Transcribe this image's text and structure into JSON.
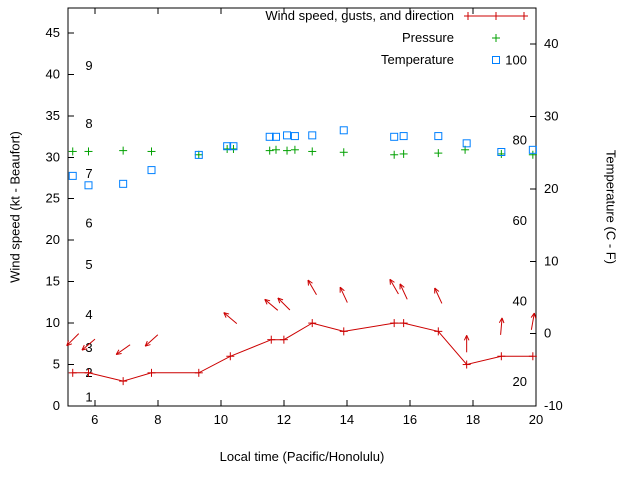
{
  "colors": {
    "wind": "#cc0000",
    "pressure": "#00a000",
    "temperature": "#0080ff",
    "axis": "#000000",
    "text": "#000000",
    "background": "#ffffff"
  },
  "legend": {
    "entries": [
      {
        "label": "Wind speed, gusts, and direction",
        "series": "wind"
      },
      {
        "label": "Pressure",
        "series": "pressure"
      },
      {
        "label": "Temperature",
        "series": "temperature"
      }
    ]
  },
  "chart_data": {
    "type": "line",
    "title": "",
    "xlabel": "Local time (Pacific/Honolulu)",
    "ylabel_left": "Wind speed (kt - Beaufort)",
    "ylabel_right": "Temperature (C - F)",
    "x_range": [
      5.15,
      20
    ],
    "y_left_range": [
      0,
      48
    ],
    "y_right_range": [
      -10,
      45
    ],
    "x_ticks": [
      6,
      8,
      10,
      12,
      14,
      16,
      18,
      20
    ],
    "y_left_ticks": [
      0,
      5,
      10,
      15,
      20,
      25,
      30,
      35,
      40,
      45
    ],
    "y_right_ticks": [
      -10,
      0,
      10,
      20,
      30,
      40
    ],
    "beaufort_scale_labels": [
      {
        "label": "1",
        "kt": 1
      },
      {
        "label": "2",
        "kt": 4
      },
      {
        "label": "3",
        "kt": 7
      },
      {
        "label": "4",
        "kt": 11
      },
      {
        "label": "5",
        "kt": 17
      },
      {
        "label": "6",
        "kt": 22
      },
      {
        "label": "7",
        "kt": 28
      },
      {
        "label": "8",
        "kt": 34
      },
      {
        "label": "9",
        "kt": 41
      }
    ],
    "fahrenheit_scale_labels": [
      {
        "label": "20",
        "f": 20
      },
      {
        "label": "40",
        "f": 40
      },
      {
        "label": "60",
        "f": 60
      },
      {
        "label": "80",
        "f": 80
      },
      {
        "label": "100",
        "f": 100
      }
    ],
    "series": [
      {
        "name": "Wind speed, gusts, and direction",
        "axis": "left",
        "marker": "plus",
        "line": true,
        "color_key": "wind",
        "points": [
          [
            5.3,
            4
          ],
          [
            5.8,
            4
          ],
          [
            6.9,
            3
          ],
          [
            7.8,
            4
          ],
          [
            9.3,
            4
          ],
          [
            10.3,
            6
          ],
          [
            11.6,
            8
          ],
          [
            12.0,
            8
          ],
          [
            12.9,
            10
          ],
          [
            13.9,
            9
          ],
          [
            15.5,
            10
          ],
          [
            15.8,
            10
          ],
          [
            16.9,
            9
          ],
          [
            17.8,
            5
          ],
          [
            18.9,
            6
          ],
          [
            19.9,
            6
          ]
        ]
      },
      {
        "name": "Pressure",
        "axis": "left",
        "marker": "plus",
        "line": false,
        "color_key": "pressure",
        "points": [
          [
            5.3,
            30.7
          ],
          [
            5.8,
            30.7
          ],
          [
            6.9,
            30.8
          ],
          [
            7.8,
            30.7
          ],
          [
            9.3,
            30.3
          ],
          [
            10.2,
            31.0
          ],
          [
            10.4,
            31.0
          ],
          [
            11.55,
            30.8
          ],
          [
            11.75,
            30.9
          ],
          [
            12.1,
            30.8
          ],
          [
            12.35,
            30.9
          ],
          [
            12.9,
            30.7
          ],
          [
            13.9,
            30.6
          ],
          [
            15.5,
            30.3
          ],
          [
            15.8,
            30.4
          ],
          [
            16.9,
            30.5
          ],
          [
            17.75,
            30.9
          ],
          [
            18.9,
            30.4
          ],
          [
            19.9,
            30.3
          ]
        ]
      },
      {
        "name": "Temperature",
        "axis": "right",
        "marker": "square",
        "line": false,
        "color_key": "temperature",
        "points": [
          [
            5.3,
            21.8
          ],
          [
            5.8,
            20.5
          ],
          [
            6.9,
            20.7
          ],
          [
            7.8,
            22.6
          ],
          [
            9.3,
            24.7
          ],
          [
            10.2,
            25.9
          ],
          [
            10.4,
            25.9
          ],
          [
            11.55,
            27.2
          ],
          [
            11.75,
            27.2
          ],
          [
            12.1,
            27.4
          ],
          [
            12.35,
            27.3
          ],
          [
            12.9,
            27.4
          ],
          [
            13.9,
            28.1
          ],
          [
            15.5,
            27.2
          ],
          [
            15.8,
            27.3
          ],
          [
            16.9,
            27.3
          ],
          [
            17.8,
            26.3
          ],
          [
            18.9,
            25.1
          ],
          [
            19.9,
            25.4
          ]
        ]
      }
    ],
    "wind_direction_arrows": [
      {
        "x": 5.3,
        "y_kt": 8.0,
        "angle_deg": 225
      },
      {
        "x": 5.8,
        "y_kt": 7.4,
        "angle_deg": 230
      },
      {
        "x": 6.9,
        "y_kt": 6.8,
        "angle_deg": 235
      },
      {
        "x": 7.8,
        "y_kt": 7.9,
        "angle_deg": 228
      },
      {
        "x": 10.3,
        "y_kt": 10.6,
        "angle_deg": 310
      },
      {
        "x": 11.6,
        "y_kt": 12.2,
        "angle_deg": 310
      },
      {
        "x": 12.0,
        "y_kt": 12.3,
        "angle_deg": 315
      },
      {
        "x": 12.9,
        "y_kt": 14.3,
        "angle_deg": 330
      },
      {
        "x": 13.9,
        "y_kt": 13.4,
        "angle_deg": 335
      },
      {
        "x": 15.5,
        "y_kt": 14.4,
        "angle_deg": 330
      },
      {
        "x": 15.8,
        "y_kt": 13.8,
        "angle_deg": 335
      },
      {
        "x": 16.9,
        "y_kt": 13.3,
        "angle_deg": 335
      },
      {
        "x": 17.8,
        "y_kt": 7.5,
        "angle_deg": 0
      },
      {
        "x": 18.9,
        "y_kt": 9.6,
        "angle_deg": 5
      },
      {
        "x": 19.9,
        "y_kt": 10.2,
        "angle_deg": 10
      }
    ]
  }
}
